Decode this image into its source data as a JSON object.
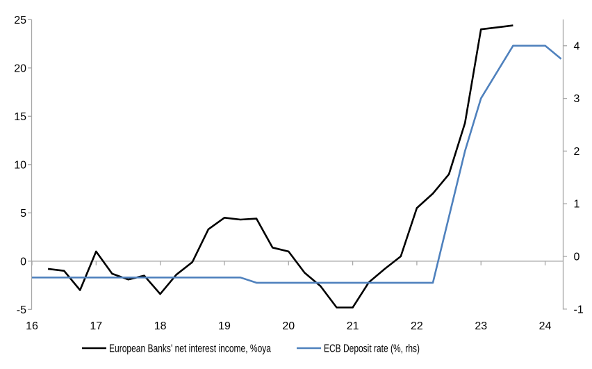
{
  "chart_data": {
    "type": "line",
    "title": "",
    "xlabel": "",
    "ylabel_left": "",
    "ylabel_right": "",
    "x_axis": {
      "tick_labels": [
        "16",
        "17",
        "18",
        "19",
        "20",
        "21",
        "22",
        "23",
        "24"
      ],
      "unit": "year (quarterly data)"
    },
    "left_axis": {
      "ticks": [
        25,
        20,
        15,
        10,
        5,
        0,
        -5
      ],
      "range": [
        -5,
        25
      ]
    },
    "right_axis": {
      "ticks": [
        4,
        3,
        2,
        1,
        0,
        -1
      ],
      "range": [
        -1,
        4.5
      ]
    },
    "grid": "zero-line-only",
    "legend_position": "bottom",
    "colors": {
      "nii_line": "#000000",
      "deposit_rate_line": "#4f81bd",
      "axis_gray": "#a6a6a6"
    },
    "series": [
      {
        "name": "European Banks' net interest income, %oya",
        "axis": "left",
        "color": "#000000",
        "quarters": [
          "2016Q2",
          "2016Q3",
          "2016Q4",
          "2017Q1",
          "2017Q2",
          "2017Q3",
          "2017Q4",
          "2018Q1",
          "2018Q2",
          "2018Q3",
          "2018Q4",
          "2019Q1",
          "2019Q2",
          "2019Q3",
          "2019Q4",
          "2020Q1",
          "2020Q2",
          "2020Q3",
          "2020Q4",
          "2021Q1",
          "2021Q2",
          "2021Q3",
          "2021Q4",
          "2022Q1",
          "2022Q2",
          "2022Q3",
          "2022Q4",
          "2023Q1",
          "2023Q2",
          "2023Q3"
        ],
        "values": [
          -0.8,
          -1.0,
          -3.0,
          1.0,
          -1.3,
          -1.9,
          -1.5,
          -3.4,
          -1.4,
          -0.1,
          3.3,
          4.5,
          4.3,
          4.4,
          1.4,
          1.0,
          -1.2,
          -2.6,
          -4.8,
          -4.8,
          -2.2,
          -0.8,
          0.5,
          5.5,
          7.0,
          9.0,
          14.3,
          24.0,
          24.2,
          24.4
        ]
      },
      {
        "name": "ECB Deposit rate (%, rhs)",
        "axis": "right",
        "color": "#4f81bd",
        "quarters": [
          "2016Q1",
          "2016Q2",
          "2016Q3",
          "2016Q4",
          "2017Q1",
          "2017Q2",
          "2017Q3",
          "2017Q4",
          "2018Q1",
          "2018Q2",
          "2018Q3",
          "2018Q4",
          "2019Q1",
          "2019Q2",
          "2019Q3",
          "2019Q4",
          "2020Q1",
          "2020Q2",
          "2020Q3",
          "2020Q4",
          "2021Q1",
          "2021Q2",
          "2021Q3",
          "2021Q4",
          "2022Q1",
          "2022Q2",
          "2022Q3",
          "2022Q4",
          "2023Q1",
          "2023Q2",
          "2023Q3",
          "2023Q4",
          "2024Q1",
          "2024Q2"
        ],
        "values": [
          -0.4,
          -0.4,
          -0.4,
          -0.4,
          -0.4,
          -0.4,
          -0.4,
          -0.4,
          -0.4,
          -0.4,
          -0.4,
          -0.4,
          -0.4,
          -0.4,
          -0.5,
          -0.5,
          -0.5,
          -0.5,
          -0.5,
          -0.5,
          -0.5,
          -0.5,
          -0.5,
          -0.5,
          -0.5,
          -0.5,
          0.75,
          2.0,
          3.0,
          3.5,
          4.0,
          4.0,
          4.0,
          3.75
        ]
      }
    ]
  }
}
